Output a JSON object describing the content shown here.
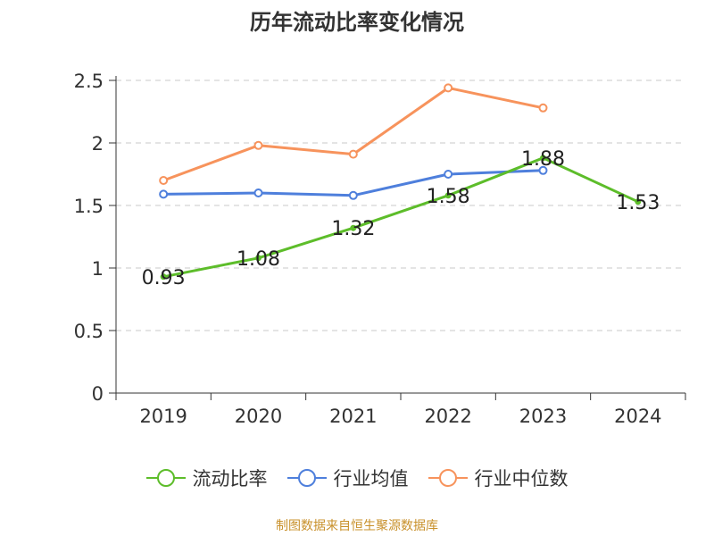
{
  "chart_data": {
    "type": "line",
    "title": "历年流动比率变化情况",
    "categories": [
      "2019",
      "2020",
      "2021",
      "2022",
      "2023",
      "2024"
    ],
    "yticks": [
      "0",
      "0.5",
      "1",
      "1.5",
      "2",
      "2.5"
    ],
    "ylim": [
      0,
      2.5
    ],
    "grid": true,
    "legend_position": "bottom",
    "series": [
      {
        "name": "流动比率",
        "color": "#5dbd2a",
        "values": [
          0.93,
          1.08,
          1.32,
          1.58,
          1.88,
          1.53
        ],
        "data_labels": [
          "0.93",
          "1.08",
          "1.32",
          "1.58",
          "1.88",
          "1.53"
        ]
      },
      {
        "name": "行业均值",
        "color": "#4e7fdc",
        "values": [
          1.59,
          1.6,
          1.58,
          1.75,
          1.78,
          null
        ]
      },
      {
        "name": "行业中位数",
        "color": "#f7935c",
        "values": [
          1.7,
          1.98,
          1.91,
          2.44,
          2.28,
          null
        ]
      }
    ]
  },
  "source_note": {
    "text": "制图数据来自恒生聚源数据库",
    "color": "#c8902a"
  }
}
